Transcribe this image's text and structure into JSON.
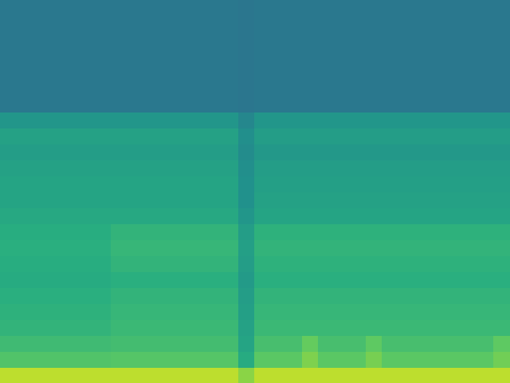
{
  "chart_data": {
    "type": "heatmap",
    "grid": false,
    "tick_labels": false,
    "color_range": [
      0,
      1
    ],
    "cells": [
      [
        0.4,
        0.4,
        0.4,
        0.4,
        0.4,
        0.4,
        0.4,
        0.4,
        0.4,
        0.4,
        0.4,
        0.4,
        0.4,
        0.4,
        0.4,
        0.39,
        0.4,
        0.4,
        0.4,
        0.4,
        0.4,
        0.4,
        0.4,
        0.4,
        0.4,
        0.4,
        0.4,
        0.4,
        0.4,
        0.4,
        0.4,
        0.4
      ],
      [
        0.4,
        0.4,
        0.4,
        0.4,
        0.4,
        0.4,
        0.4,
        0.4,
        0.4,
        0.4,
        0.4,
        0.4,
        0.4,
        0.4,
        0.4,
        0.39,
        0.4,
        0.4,
        0.4,
        0.4,
        0.4,
        0.4,
        0.4,
        0.4,
        0.4,
        0.4,
        0.4,
        0.4,
        0.4,
        0.4,
        0.4,
        0.4
      ],
      [
        0.4,
        0.4,
        0.4,
        0.4,
        0.4,
        0.4,
        0.4,
        0.4,
        0.4,
        0.4,
        0.4,
        0.4,
        0.4,
        0.4,
        0.4,
        0.39,
        0.4,
        0.4,
        0.4,
        0.4,
        0.4,
        0.4,
        0.4,
        0.4,
        0.4,
        0.4,
        0.4,
        0.4,
        0.4,
        0.4,
        0.4,
        0.4
      ],
      [
        0.4,
        0.4,
        0.4,
        0.4,
        0.4,
        0.4,
        0.4,
        0.4,
        0.4,
        0.4,
        0.4,
        0.4,
        0.4,
        0.4,
        0.4,
        0.39,
        0.4,
        0.4,
        0.4,
        0.4,
        0.4,
        0.4,
        0.4,
        0.4,
        0.4,
        0.4,
        0.4,
        0.4,
        0.4,
        0.4,
        0.4,
        0.4
      ],
      [
        0.4,
        0.4,
        0.4,
        0.4,
        0.4,
        0.4,
        0.4,
        0.4,
        0.4,
        0.4,
        0.4,
        0.4,
        0.4,
        0.4,
        0.4,
        0.39,
        0.4,
        0.4,
        0.4,
        0.4,
        0.4,
        0.4,
        0.4,
        0.4,
        0.4,
        0.4,
        0.4,
        0.4,
        0.4,
        0.4,
        0.4,
        0.4
      ],
      [
        0.4,
        0.4,
        0.4,
        0.4,
        0.4,
        0.4,
        0.4,
        0.4,
        0.4,
        0.4,
        0.4,
        0.4,
        0.4,
        0.4,
        0.4,
        0.39,
        0.4,
        0.4,
        0.4,
        0.4,
        0.4,
        0.4,
        0.4,
        0.4,
        0.4,
        0.4,
        0.4,
        0.4,
        0.4,
        0.4,
        0.4,
        0.4
      ],
      [
        0.4,
        0.4,
        0.4,
        0.4,
        0.4,
        0.4,
        0.4,
        0.4,
        0.4,
        0.4,
        0.4,
        0.4,
        0.4,
        0.4,
        0.4,
        0.39,
        0.4,
        0.4,
        0.4,
        0.4,
        0.4,
        0.4,
        0.4,
        0.4,
        0.4,
        0.4,
        0.4,
        0.4,
        0.4,
        0.4,
        0.4,
        0.4
      ],
      [
        0.52,
        0.52,
        0.52,
        0.52,
        0.52,
        0.52,
        0.52,
        0.52,
        0.52,
        0.52,
        0.52,
        0.52,
        0.52,
        0.52,
        0.52,
        0.46,
        0.52,
        0.52,
        0.52,
        0.52,
        0.52,
        0.52,
        0.52,
        0.52,
        0.52,
        0.52,
        0.52,
        0.52,
        0.52,
        0.52,
        0.52,
        0.52
      ],
      [
        0.57,
        0.57,
        0.57,
        0.57,
        0.57,
        0.57,
        0.57,
        0.57,
        0.57,
        0.57,
        0.57,
        0.57,
        0.57,
        0.57,
        0.57,
        0.49,
        0.55,
        0.55,
        0.55,
        0.55,
        0.55,
        0.55,
        0.55,
        0.55,
        0.55,
        0.55,
        0.55,
        0.55,
        0.55,
        0.55,
        0.55,
        0.55
      ],
      [
        0.55,
        0.55,
        0.55,
        0.55,
        0.55,
        0.55,
        0.55,
        0.55,
        0.55,
        0.55,
        0.55,
        0.55,
        0.55,
        0.55,
        0.55,
        0.48,
        0.53,
        0.53,
        0.53,
        0.53,
        0.53,
        0.53,
        0.53,
        0.53,
        0.53,
        0.53,
        0.53,
        0.53,
        0.53,
        0.53,
        0.53,
        0.53
      ],
      [
        0.57,
        0.57,
        0.57,
        0.57,
        0.57,
        0.57,
        0.57,
        0.57,
        0.57,
        0.57,
        0.57,
        0.57,
        0.57,
        0.57,
        0.57,
        0.49,
        0.55,
        0.55,
        0.55,
        0.55,
        0.55,
        0.55,
        0.55,
        0.55,
        0.55,
        0.55,
        0.55,
        0.55,
        0.55,
        0.55,
        0.55,
        0.55
      ],
      [
        0.58,
        0.58,
        0.58,
        0.58,
        0.58,
        0.58,
        0.58,
        0.58,
        0.58,
        0.58,
        0.58,
        0.58,
        0.58,
        0.58,
        0.58,
        0.5,
        0.56,
        0.56,
        0.56,
        0.56,
        0.56,
        0.56,
        0.56,
        0.56,
        0.56,
        0.56,
        0.56,
        0.56,
        0.56,
        0.56,
        0.56,
        0.56
      ],
      [
        0.58,
        0.58,
        0.58,
        0.58,
        0.58,
        0.58,
        0.58,
        0.58,
        0.58,
        0.58,
        0.58,
        0.58,
        0.58,
        0.58,
        0.58,
        0.5,
        0.57,
        0.57,
        0.57,
        0.57,
        0.57,
        0.57,
        0.57,
        0.57,
        0.57,
        0.57,
        0.57,
        0.57,
        0.57,
        0.57,
        0.57,
        0.57
      ],
      [
        0.6,
        0.6,
        0.6,
        0.6,
        0.6,
        0.6,
        0.6,
        0.6,
        0.6,
        0.6,
        0.6,
        0.6,
        0.6,
        0.6,
        0.6,
        0.52,
        0.58,
        0.58,
        0.58,
        0.58,
        0.58,
        0.58,
        0.58,
        0.58,
        0.58,
        0.58,
        0.58,
        0.58,
        0.58,
        0.58,
        0.58,
        0.58
      ],
      [
        0.62,
        0.62,
        0.62,
        0.62,
        0.62,
        0.62,
        0.62,
        0.65,
        0.65,
        0.65,
        0.65,
        0.65,
        0.65,
        0.65,
        0.65,
        0.55,
        0.64,
        0.64,
        0.64,
        0.64,
        0.64,
        0.64,
        0.64,
        0.64,
        0.64,
        0.64,
        0.64,
        0.64,
        0.64,
        0.64,
        0.64,
        0.64
      ],
      [
        0.63,
        0.63,
        0.63,
        0.63,
        0.63,
        0.63,
        0.63,
        0.66,
        0.66,
        0.66,
        0.66,
        0.66,
        0.66,
        0.66,
        0.66,
        0.56,
        0.65,
        0.65,
        0.65,
        0.65,
        0.65,
        0.65,
        0.65,
        0.65,
        0.65,
        0.65,
        0.65,
        0.65,
        0.65,
        0.65,
        0.65,
        0.65
      ],
      [
        0.62,
        0.62,
        0.62,
        0.62,
        0.62,
        0.62,
        0.62,
        0.65,
        0.65,
        0.65,
        0.65,
        0.65,
        0.65,
        0.65,
        0.65,
        0.55,
        0.64,
        0.64,
        0.64,
        0.64,
        0.64,
        0.64,
        0.64,
        0.64,
        0.64,
        0.64,
        0.64,
        0.64,
        0.64,
        0.64,
        0.64,
        0.64
      ],
      [
        0.61,
        0.61,
        0.61,
        0.61,
        0.61,
        0.61,
        0.61,
        0.63,
        0.63,
        0.63,
        0.63,
        0.63,
        0.63,
        0.63,
        0.63,
        0.54,
        0.63,
        0.63,
        0.63,
        0.63,
        0.63,
        0.63,
        0.63,
        0.63,
        0.63,
        0.63,
        0.63,
        0.63,
        0.63,
        0.63,
        0.63,
        0.63
      ],
      [
        0.63,
        0.63,
        0.63,
        0.63,
        0.63,
        0.63,
        0.63,
        0.65,
        0.65,
        0.65,
        0.65,
        0.65,
        0.65,
        0.65,
        0.65,
        0.55,
        0.65,
        0.65,
        0.65,
        0.65,
        0.65,
        0.65,
        0.65,
        0.65,
        0.65,
        0.65,
        0.65,
        0.65,
        0.65,
        0.65,
        0.65,
        0.65
      ],
      [
        0.64,
        0.64,
        0.64,
        0.64,
        0.64,
        0.64,
        0.64,
        0.66,
        0.66,
        0.66,
        0.66,
        0.66,
        0.66,
        0.66,
        0.66,
        0.56,
        0.66,
        0.66,
        0.66,
        0.66,
        0.66,
        0.66,
        0.66,
        0.66,
        0.66,
        0.66,
        0.66,
        0.66,
        0.66,
        0.66,
        0.66,
        0.66
      ],
      [
        0.65,
        0.65,
        0.65,
        0.65,
        0.65,
        0.65,
        0.65,
        0.67,
        0.67,
        0.67,
        0.67,
        0.67,
        0.67,
        0.67,
        0.67,
        0.57,
        0.67,
        0.67,
        0.67,
        0.67,
        0.67,
        0.67,
        0.67,
        0.67,
        0.67,
        0.67,
        0.67,
        0.67,
        0.67,
        0.67,
        0.67,
        0.67
      ],
      [
        0.68,
        0.68,
        0.68,
        0.68,
        0.68,
        0.68,
        0.68,
        0.69,
        0.69,
        0.69,
        0.69,
        0.69,
        0.69,
        0.69,
        0.69,
        0.58,
        0.7,
        0.7,
        0.7,
        0.76,
        0.7,
        0.7,
        0.7,
        0.75,
        0.7,
        0.7,
        0.7,
        0.7,
        0.7,
        0.7,
        0.7,
        0.75
      ],
      [
        0.72,
        0.72,
        0.72,
        0.72,
        0.72,
        0.72,
        0.72,
        0.73,
        0.73,
        0.73,
        0.73,
        0.73,
        0.73,
        0.73,
        0.73,
        0.61,
        0.74,
        0.74,
        0.74,
        0.8,
        0.74,
        0.74,
        0.74,
        0.79,
        0.74,
        0.74,
        0.74,
        0.74,
        0.74,
        0.74,
        0.74,
        0.78
      ],
      [
        0.9,
        0.9,
        0.9,
        0.9,
        0.9,
        0.9,
        0.9,
        0.9,
        0.9,
        0.9,
        0.9,
        0.9,
        0.9,
        0.9,
        0.9,
        0.82,
        0.9,
        0.9,
        0.9,
        0.9,
        0.9,
        0.9,
        0.9,
        0.9,
        0.9,
        0.9,
        0.9,
        0.9,
        0.9,
        0.9,
        0.9,
        0.9
      ]
    ]
  }
}
